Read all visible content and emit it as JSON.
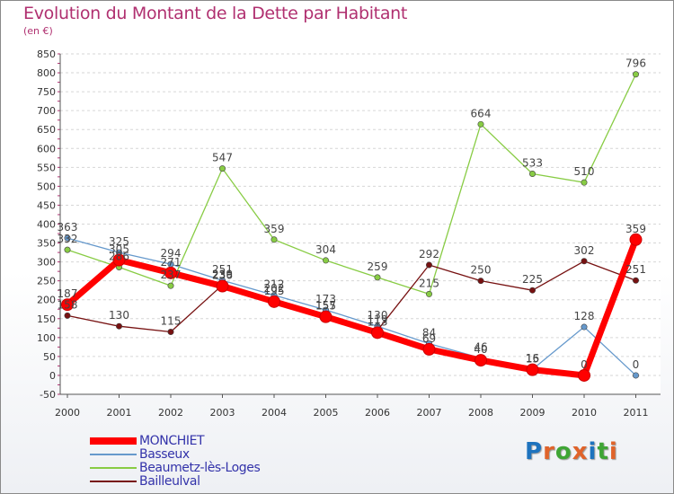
{
  "header": {
    "title": "Evolution du Montant de la Dette par Habitant",
    "unit": "(en €)"
  },
  "logo": {
    "text": "Proxiti",
    "colors": [
      "#1e73be",
      "#e0632a",
      "#3fa535",
      "#e0632a",
      "#1e73be",
      "#3fa535",
      "#e0632a"
    ]
  },
  "chart_data": {
    "type": "line",
    "title": "Evolution du Montant de la Dette par Habitant",
    "ylabel": "(en €)",
    "xlabel": "",
    "x": [
      "2000",
      "2001",
      "2002",
      "2003",
      "2004",
      "2005",
      "2006",
      "2007",
      "2008",
      "2009",
      "2010",
      "2011"
    ],
    "ylim": [
      -50,
      850
    ],
    "yticks": [
      -50,
      0,
      50,
      100,
      150,
      200,
      250,
      300,
      350,
      400,
      450,
      500,
      550,
      600,
      650,
      700,
      750,
      800,
      850
    ],
    "grid": "horizontal",
    "legend_position": "bottom-left",
    "series": [
      {
        "name": "MONCHIET",
        "color": "#ff0000",
        "values": [
          187,
          305,
          271,
          236,
          195,
          155,
          113,
          69,
          40,
          15,
          0,
          359
        ]
      },
      {
        "name": "Basseux",
        "color": "#6699cc",
        "values": [
          363,
          325,
          294,
          251,
          212,
          173,
          130,
          84,
          46,
          16,
          128,
          0
        ]
      },
      {
        "name": "Beaumetz-lès-Loges",
        "color": "#88cc44",
        "values": [
          332,
          286,
          237,
          547,
          359,
          304,
          259,
          215,
          664,
          533,
          510,
          796
        ]
      },
      {
        "name": "Bailleulval",
        "color": "#771111",
        "values": [
          158,
          130,
          115,
          239,
          202,
          157,
          119,
          292,
          250,
          225,
          302,
          251
        ]
      }
    ]
  }
}
